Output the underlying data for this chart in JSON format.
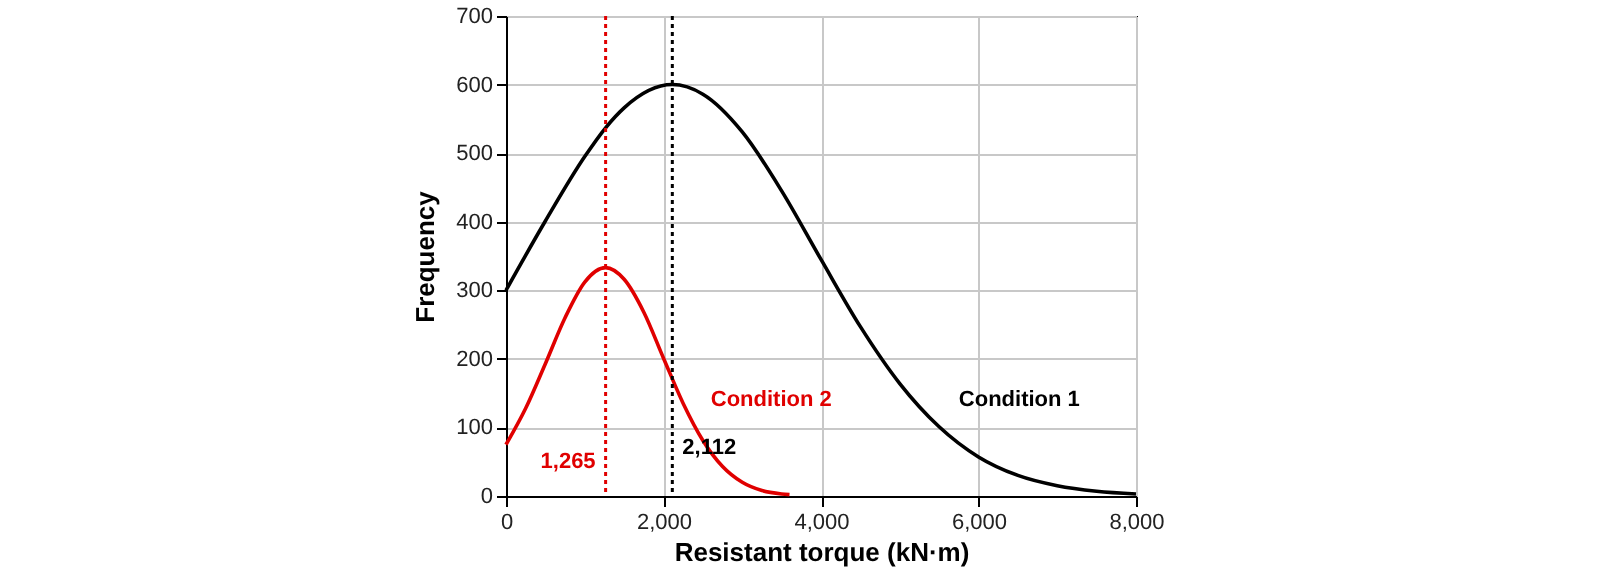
{
  "chart_data": {
    "type": "line",
    "xlabel": "Resistant torque (kN·m)",
    "ylabel": "Frequency",
    "xlim": [
      0,
      8000
    ],
    "xticks": [
      0,
      {
        "value": 2000,
        "label": "2,000"
      },
      {
        "value": 4000,
        "label": "4,000"
      },
      {
        "value": 6000,
        "label": "6,000"
      },
      {
        "value": 8000,
        "label": "8,000"
      }
    ],
    "ylim": [
      0,
      700
    ],
    "yticks": [
      0,
      100,
      200,
      300,
      400,
      500,
      600,
      700
    ],
    "grid": true,
    "line_style": "solid",
    "series": [
      {
        "name": "Condition 1",
        "color": "#000000",
        "x": [
          0,
          500,
          1000,
          1265,
          1500,
          2112,
          2500,
          3000,
          3500,
          4000,
          4500,
          5000,
          5500,
          6000,
          6500,
          7000,
          7500,
          8000
        ],
        "values": [
          300,
          401,
          495,
          537,
          566,
          600,
          586,
          531,
          445,
          345,
          247,
          164,
          101,
          57,
          30,
          15,
          7,
          3
        ]
      },
      {
        "name": "Condition 2",
        "color": "#e00000",
        "x": [
          0,
          250,
          500,
          750,
          1000,
          1265,
          1500,
          1750,
          2000,
          2250,
          2500,
          2750,
          3000,
          3250,
          3500,
          3600
        ],
        "values": [
          75,
          128,
          193,
          260,
          312,
          333,
          316,
          268,
          201,
          135,
          81,
          43,
          20,
          8,
          3,
          2
        ]
      }
    ],
    "ref_lines": [
      {
        "axis": "x",
        "value": 1265,
        "label": "1,265",
        "color": "#e00000",
        "line_style": "dotted"
      },
      {
        "axis": "x",
        "value": 2112,
        "label": "2,112",
        "color": "#000000",
        "line_style": "dotted"
      }
    ]
  }
}
